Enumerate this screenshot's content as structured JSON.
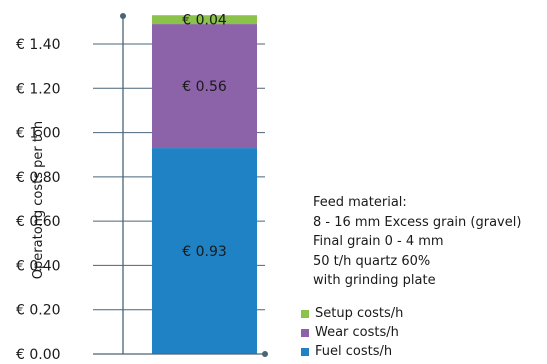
{
  "chart_data": {
    "type": "bar",
    "stacked": true,
    "categories": [
      ""
    ],
    "series": [
      {
        "name": "Fuel costs/h",
        "values": [
          0.93
        ],
        "label": "€ 0.93",
        "color": "#1f82c4"
      },
      {
        "name": "Wear costs/h",
        "values": [
          0.56
        ],
        "label": "€ 0.56",
        "color": "#8c63a9"
      },
      {
        "name": "Setup costs/h",
        "values": [
          0.04
        ],
        "label": "€ 0.04",
        "color": "#8bc34a"
      }
    ],
    "ylabel": "Operatong costs per ton",
    "xlabel": "",
    "ylim": [
      0,
      1.5
    ],
    "y_ticks": [
      {
        "value": 0.0,
        "label": "€ 0.00"
      },
      {
        "value": 0.2,
        "label": "€ 0.20"
      },
      {
        "value": 0.4,
        "label": "€ 0.40"
      },
      {
        "value": 0.6,
        "label": "€ 0.60"
      },
      {
        "value": 0.8,
        "label": "€ 0.80"
      },
      {
        "value": 1.0,
        "label": "€ 1.00"
      },
      {
        "value": 1.2,
        "label": "€ 1.20"
      },
      {
        "value": 1.4,
        "label": "€ 1.40"
      }
    ],
    "grid": true,
    "legend_position": "bottom-right",
    "annotation": [
      "Feed material:",
      "8 - 16 mm Excess grain (gravel)",
      "Final grain 0 - 4 mm",
      "50 t/h quartz 60%",
      "with grinding plate"
    ],
    "axis_color": "#4a6478"
  },
  "legend": [
    {
      "label": "Setup costs/h",
      "color": "#8bc34a"
    },
    {
      "label": "Wear costs/h",
      "color": "#8c63a9"
    },
    {
      "label": "Fuel costs/h",
      "color": "#1f82c4"
    }
  ]
}
